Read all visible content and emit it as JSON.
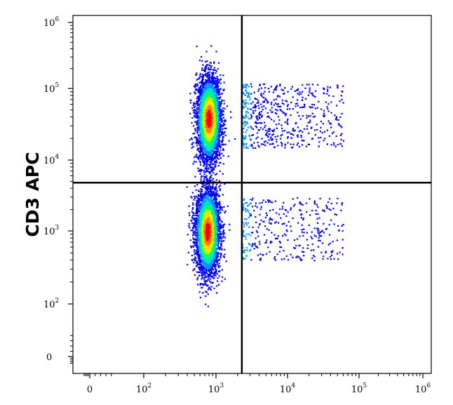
{
  "chart_data": {
    "type": "scatter",
    "title": "",
    "xlabel": "",
    "ylabel": "CD3 APC",
    "x_scale": "biexponential",
    "y_scale": "biexponential",
    "xlim": [
      -50,
      1000000
    ],
    "ylim": [
      -50,
      1000000
    ],
    "x_ticks": [
      {
        "value": 0,
        "base": "0",
        "exp": ""
      },
      {
        "value": 100,
        "base": "10",
        "exp": "2"
      },
      {
        "value": 1000,
        "base": "10",
        "exp": "3"
      },
      {
        "value": 10000,
        "base": "10",
        "exp": "4"
      },
      {
        "value": 100000,
        "base": "10",
        "exp": "5"
      },
      {
        "value": 1000000,
        "base": "10",
        "exp": "6"
      }
    ],
    "y_ticks": [
      {
        "value": 0,
        "base": "0",
        "exp": ""
      },
      {
        "value": 100,
        "base": "10",
        "exp": "2"
      },
      {
        "value": 1000,
        "base": "10",
        "exp": "3"
      },
      {
        "value": 10000,
        "base": "10",
        "exp": "4"
      },
      {
        "value": 100000,
        "base": "10",
        "exp": "5"
      },
      {
        "value": 1000000,
        "base": "10",
        "exp": "6"
      }
    ],
    "quadrant_gate": {
      "x": 2300,
      "y": 4800
    },
    "color_scale": [
      "#00007f",
      "#0000ff",
      "#0090ff",
      "#00e0d0",
      "#00ff60",
      "#c0ff00",
      "#ffe000",
      "#ff8000",
      "#ff0000"
    ],
    "populations": [
      {
        "name": "CD3-negative",
        "x_center": 750,
        "y_center": 1000,
        "x_spread_decades": 0.085,
        "y_spread_decades": 0.3,
        "relative_density": 1.0,
        "peak_color": "#ff0000"
      },
      {
        "name": "CD3-positive",
        "x_center": 780,
        "y_center": 38000,
        "x_spread_decades": 0.085,
        "y_spread_decades": 0.3,
        "relative_density": 1.0,
        "peak_color": "#ff0000"
      },
      {
        "name": "CD3-positive, marker-positive tail",
        "x_range": [
          2300,
          60000
        ],
        "y_range": [
          15000,
          120000
        ],
        "relative_density": 0.15,
        "peak_color": "#0000ff"
      },
      {
        "name": "CD3-negative, marker-positive tail",
        "x_range": [
          2300,
          60000
        ],
        "y_range": [
          400,
          3000
        ],
        "relative_density": 0.1,
        "peak_color": "#0000ff"
      }
    ]
  }
}
